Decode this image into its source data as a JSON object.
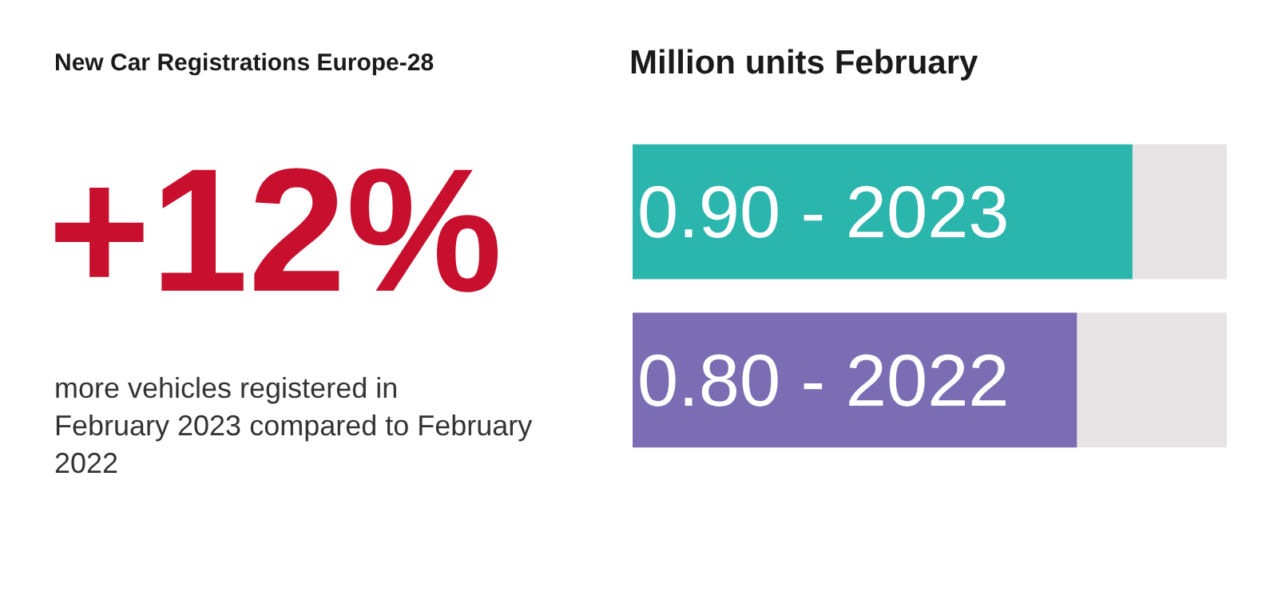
{
  "chart_data": {
    "type": "bar",
    "orientation": "horizontal",
    "title": "New Car Registrations Europe-28",
    "subtitle": "Million units February",
    "categories": [
      null,
      null
    ],
    "values": [
      0.9,
      0.8
    ],
    "colors": [
      "#2ab5ad",
      "#7a6db3"
    ],
    "value_labels": [
      "0.90 - 2023",
      "0.80 - 2022"
    ],
    "xlim": [
      0,
      1.07
    ],
    "tick_labels": false,
    "grid": false,
    "legend": false,
    "annotations": [
      "+12%",
      "more vehicles registered in February 2023 compared to February 2022"
    ]
  }
}
